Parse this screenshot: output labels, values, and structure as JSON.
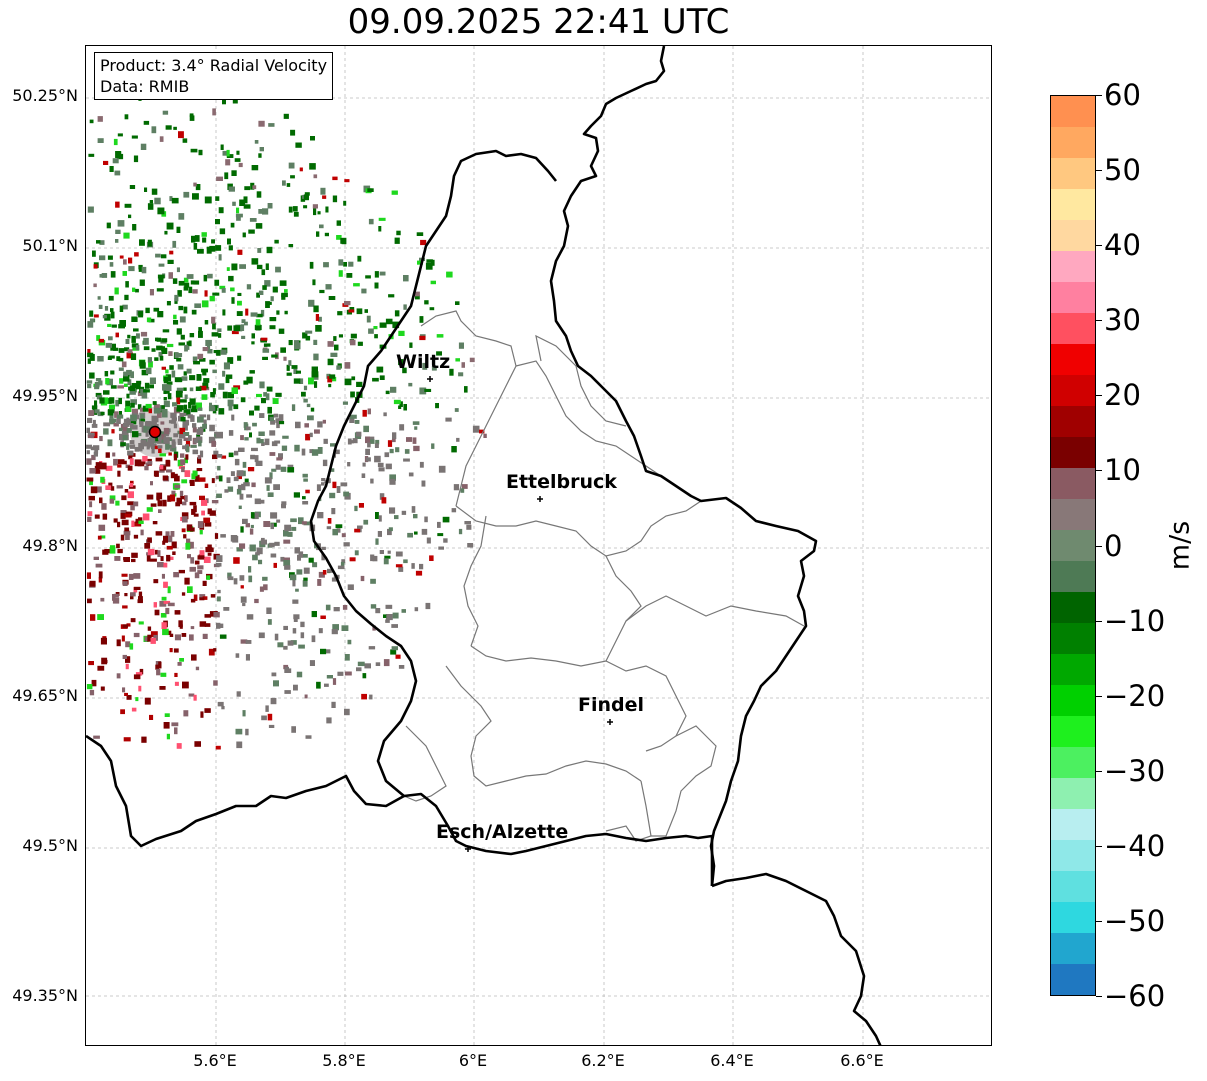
{
  "title": "09.09.2025 22:41 UTC",
  "info": {
    "product": "Product: 3.4° Radial Velocity",
    "data_source": "Data: RMIB"
  },
  "axes": {
    "lat_ticks": [
      "50.25°N",
      "50.1°N",
      "49.95°N",
      "49.8°N",
      "49.65°N",
      "49.5°N",
      "49.35°N"
    ],
    "lon_ticks": [
      "5.6°E",
      "5.8°E",
      "6°E",
      "6.2°E",
      "6.4°E",
      "6.6°E"
    ]
  },
  "cities": [
    {
      "name": "Wiltz"
    },
    {
      "name": "Ettelbruck"
    },
    {
      "name": "Findel"
    },
    {
      "name": "Esch/Alzette"
    }
  ],
  "colorbar": {
    "label": "m/s",
    "ticks": [
      "60",
      "50",
      "40",
      "30",
      "20",
      "10",
      "0",
      "−10",
      "−20",
      "−30",
      "−40",
      "−50",
      "−60"
    ],
    "min": -60,
    "max": 60,
    "colors": [
      "#1f78c1",
      "#21a6cf",
      "#2ed8e0",
      "#5fe0e0",
      "#8fe8e8",
      "#b8eef0",
      "#8ef0b0",
      "#4cf060",
      "#1ef01e",
      "#00d000",
      "#00a800",
      "#008000",
      "#006400",
      "#4e7a55",
      "#6f8a6f",
      "#887878",
      "#8a5a62",
      "#7a0000",
      "#a00000",
      "#d00000",
      "#f00000",
      "#ff5060",
      "#ff80a0",
      "#ffa8c0",
      "#ffd8a0",
      "#ffe8a0",
      "#ffc880",
      "#ffa860",
      "#ff9050"
    ]
  },
  "radar": {
    "site_label": "radar-site"
  }
}
